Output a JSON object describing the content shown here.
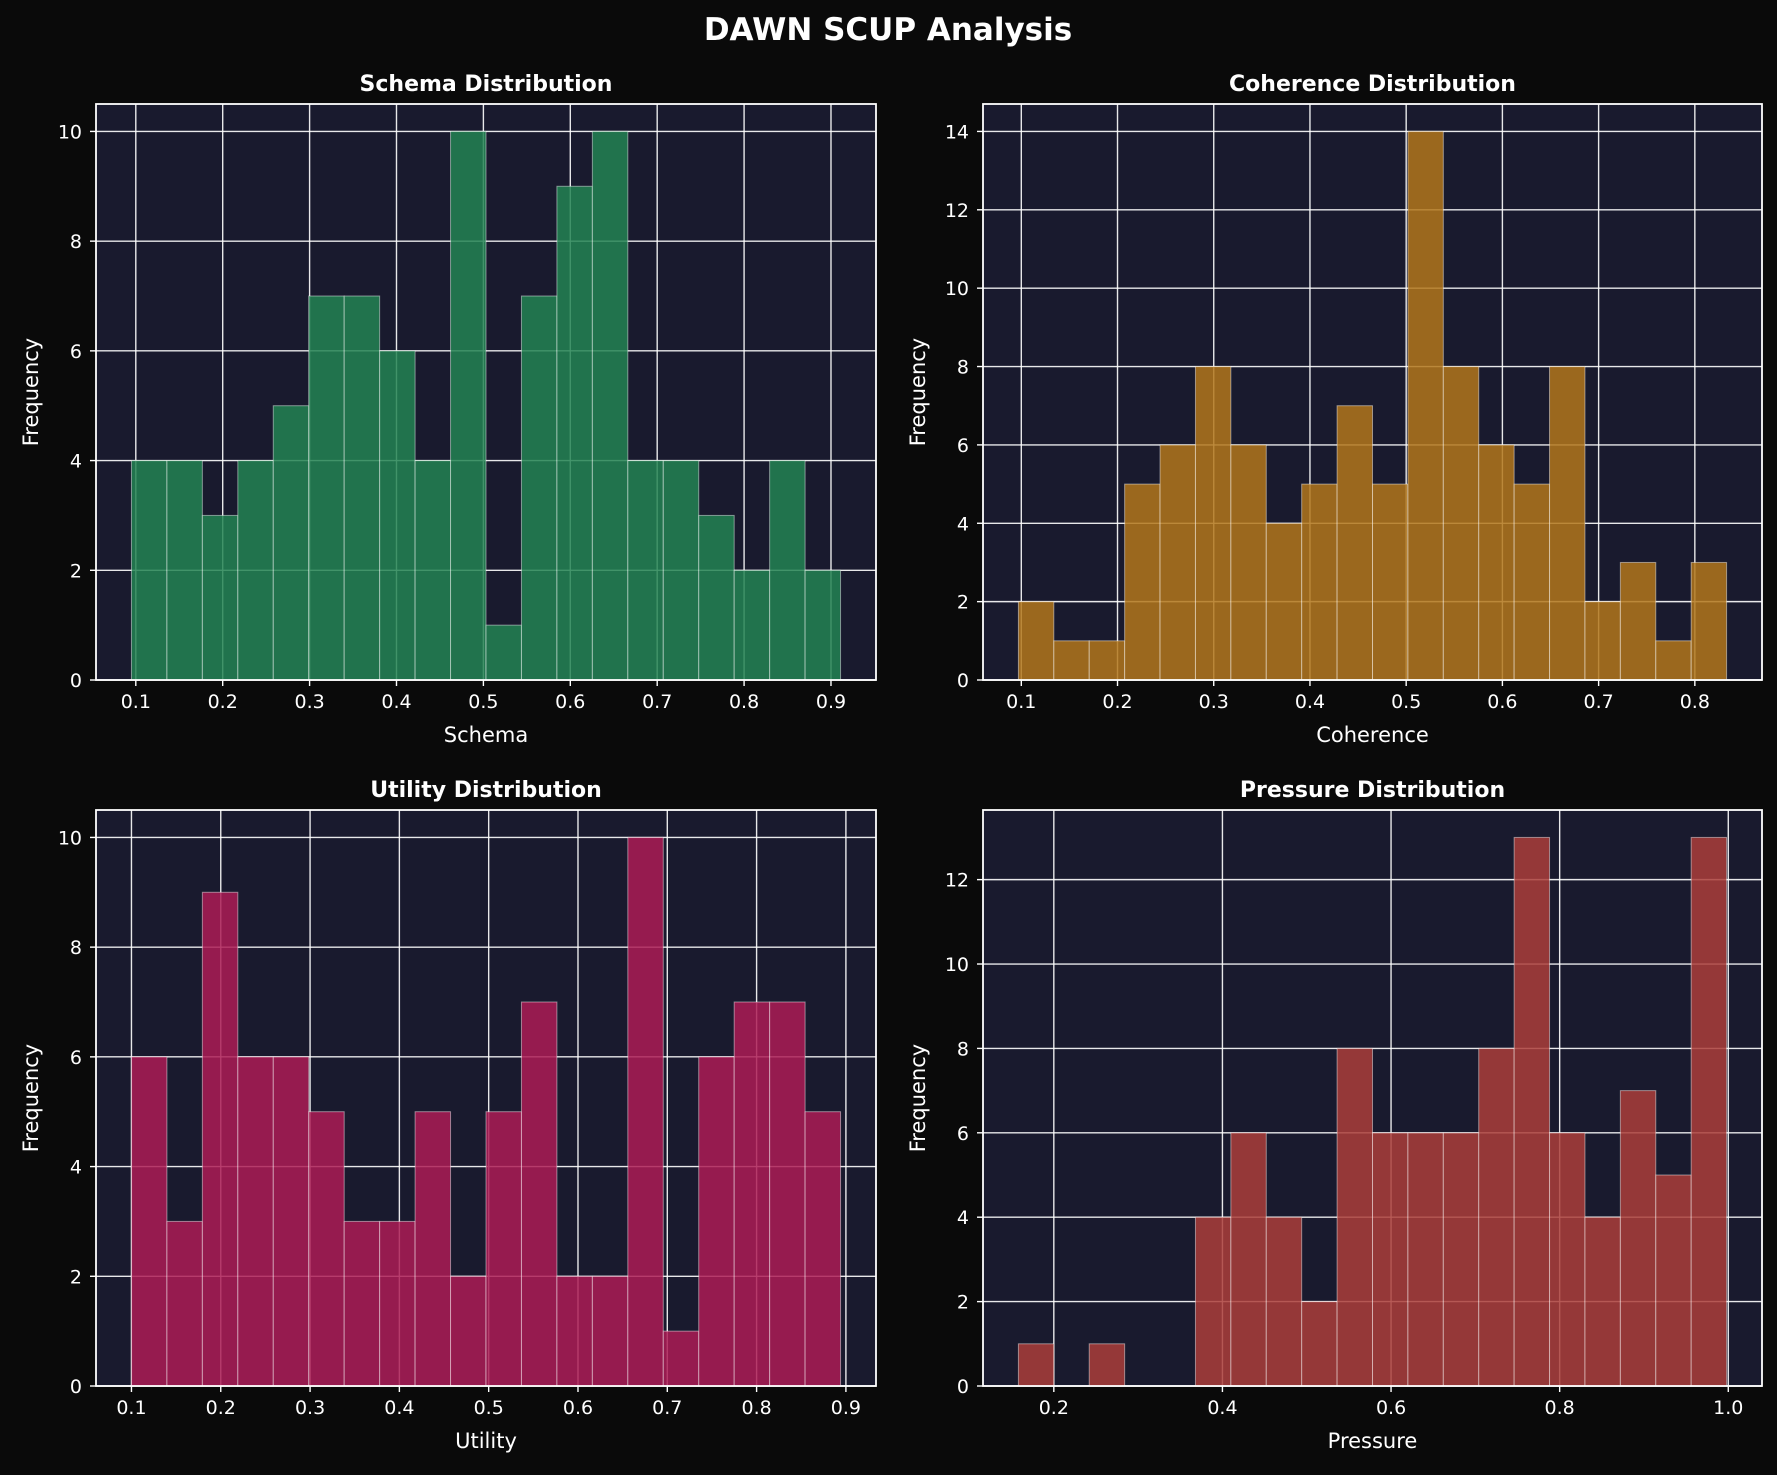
{
  "figure": {
    "title": "DAWN SCUP Analysis",
    "background": "#0a0a0a",
    "axes_background": "#191a2e",
    "grid_color": "#ffffff",
    "text_color": "#ffffff"
  },
  "chart_data": [
    {
      "type": "bar",
      "subtype": "histogram",
      "title": "Schema Distribution",
      "xlabel": "Schema",
      "ylabel": "Frequency",
      "color": "#238452",
      "grid": true,
      "bin_edges": [
        0.095,
        0.1358,
        0.1766,
        0.2174,
        0.2582,
        0.299,
        0.3398,
        0.3806,
        0.4214,
        0.4622,
        0.503,
        0.5438,
        0.5846,
        0.6254,
        0.6662,
        0.707,
        0.7478,
        0.7886,
        0.8294,
        0.8702,
        0.911
      ],
      "counts": [
        4,
        4,
        3,
        4,
        5,
        7,
        7,
        6,
        4,
        10,
        1,
        7,
        9,
        10,
        4,
        4,
        3,
        2,
        4,
        2
      ],
      "xlim": [
        0.0542,
        0.9518
      ],
      "ylim": [
        0,
        10.5
      ],
      "xticks": [
        0.1,
        0.2,
        0.3,
        0.4,
        0.5,
        0.6,
        0.7,
        0.8,
        0.9
      ],
      "xtick_labels": [
        "0.1",
        "0.2",
        "0.3",
        "0.4",
        "0.5",
        "0.6",
        "0.7",
        "0.8",
        "0.9"
      ],
      "yticks": [
        0,
        2,
        4,
        6,
        8,
        10
      ],
      "ytick_labels": [
        "0",
        "2",
        "4",
        "6",
        "8",
        "10"
      ]
    },
    {
      "type": "bar",
      "subtype": "histogram",
      "title": "Coherence Distribution",
      "xlabel": "Coherence",
      "ylabel": "Frequency",
      "color": "#b3771b",
      "grid": true,
      "bin_edges": [
        0.097,
        0.1338,
        0.1706,
        0.2074,
        0.2442,
        0.281,
        0.3178,
        0.3546,
        0.3914,
        0.4282,
        0.465,
        0.5018,
        0.5386,
        0.5754,
        0.6122,
        0.649,
        0.6858,
        0.7226,
        0.7594,
        0.7962,
        0.833
      ],
      "counts": [
        2,
        1,
        1,
        5,
        6,
        8,
        6,
        4,
        5,
        7,
        5,
        14,
        8,
        6,
        5,
        8,
        2,
        3,
        1,
        3
      ],
      "xlim": [
        0.0602,
        0.8698
      ],
      "ylim": [
        0,
        14.7
      ],
      "xticks": [
        0.1,
        0.2,
        0.3,
        0.4,
        0.5,
        0.6,
        0.7,
        0.8
      ],
      "xtick_labels": [
        "0.1",
        "0.2",
        "0.3",
        "0.4",
        "0.5",
        "0.6",
        "0.7",
        "0.8"
      ],
      "yticks": [
        0,
        2,
        4,
        6,
        8,
        10,
        12,
        14
      ],
      "ytick_labels": [
        "0",
        "2",
        "4",
        "6",
        "8",
        "10",
        "12",
        "14"
      ]
    },
    {
      "type": "bar",
      "subtype": "histogram",
      "title": "Utility Distribution",
      "xlabel": "Utility",
      "ylabel": "Frequency",
      "color": "#ad1c55",
      "grid": true,
      "bin_edges": [
        0.1,
        0.1397,
        0.1794,
        0.2191,
        0.2588,
        0.2985,
        0.3382,
        0.3779,
        0.4176,
        0.4573,
        0.497,
        0.5367,
        0.5764,
        0.6161,
        0.6558,
        0.6955,
        0.7352,
        0.7749,
        0.8146,
        0.8543,
        0.894
      ],
      "counts": [
        6,
        3,
        9,
        6,
        6,
        5,
        3,
        3,
        5,
        2,
        5,
        7,
        2,
        2,
        10,
        1,
        6,
        7,
        7,
        5
      ],
      "xlim": [
        0.0603,
        0.9337
      ],
      "ylim": [
        0,
        10.5
      ],
      "xticks": [
        0.1,
        0.2,
        0.3,
        0.4,
        0.5,
        0.6,
        0.7,
        0.8,
        0.9
      ],
      "xtick_labels": [
        "0.1",
        "0.2",
        "0.3",
        "0.4",
        "0.5",
        "0.6",
        "0.7",
        "0.8",
        "0.9"
      ],
      "yticks": [
        0,
        2,
        4,
        6,
        8,
        10
      ],
      "ytick_labels": [
        "0",
        "2",
        "4",
        "6",
        "8",
        "10"
      ]
    },
    {
      "type": "bar",
      "subtype": "histogram",
      "title": "Pressure Distribution",
      "xlabel": "Pressure",
      "ylabel": "Frequency",
      "color": "#ab3e3a",
      "grid": true,
      "bin_edges": [
        0.158,
        0.2,
        0.242,
        0.284,
        0.326,
        0.368,
        0.41,
        0.452,
        0.494,
        0.536,
        0.578,
        0.62,
        0.662,
        0.704,
        0.746,
        0.788,
        0.83,
        0.872,
        0.914,
        0.956,
        0.998
      ],
      "counts": [
        1,
        0,
        1,
        0,
        0,
        4,
        6,
        4,
        2,
        8,
        6,
        6,
        6,
        8,
        13,
        6,
        4,
        7,
        5,
        13
      ],
      "xlim": [
        0.116,
        1.04
      ],
      "ylim": [
        0,
        13.65
      ],
      "xticks": [
        0.2,
        0.4,
        0.6,
        0.8,
        1.0
      ],
      "xtick_labels": [
        "0.2",
        "0.4",
        "0.6",
        "0.8",
        "1.0"
      ],
      "yticks": [
        0,
        2,
        4,
        6,
        8,
        10,
        12
      ],
      "ytick_labels": [
        "0",
        "2",
        "4",
        "6",
        "8",
        "10",
        "12"
      ]
    }
  ]
}
